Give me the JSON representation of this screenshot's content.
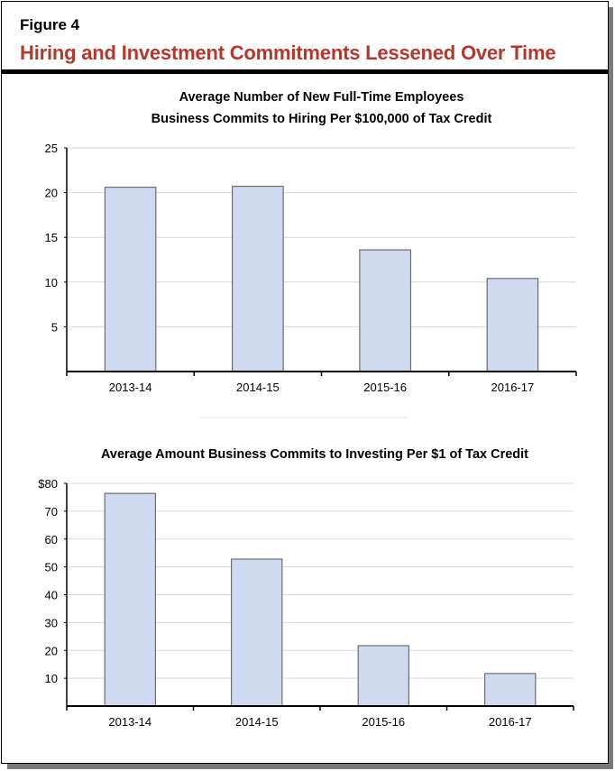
{
  "figure_label": "Figure 4",
  "figure_title": "Hiring and Investment Commitments Lessened Over Time",
  "chart_data": [
    {
      "type": "bar",
      "title": [
        "Average Number of New Full-Time Employees",
        "Business Commits to Hiring Per $100,000 of Tax Credit"
      ],
      "categories": [
        "2013-14",
        "2014-15",
        "2015-16",
        "2016-17"
      ],
      "values": [
        20.6,
        20.7,
        13.6,
        10.4
      ],
      "yticks": [
        5,
        10,
        15,
        20,
        25
      ],
      "ytick_labels": [
        "5",
        "10",
        "15",
        "20",
        "25"
      ],
      "ylim": [
        0,
        25
      ],
      "grid": true,
      "bar_color": "#cfd9f0"
    },
    {
      "type": "bar",
      "title": [
        "Average Amount Business Commits to Investing Per $1 of Tax Credit"
      ],
      "categories": [
        "2013-14",
        "2014-15",
        "2015-16",
        "2016-17"
      ],
      "values": [
        76.4,
        52.8,
        21.7,
        11.7
      ],
      "yticks": [
        10,
        20,
        30,
        40,
        50,
        60,
        70,
        80
      ],
      "ytick_labels": [
        "10",
        "20",
        "30",
        "40",
        "50",
        "60",
        "70",
        "$80"
      ],
      "ylim": [
        0,
        80
      ],
      "grid": true,
      "bar_color": "#cfd9f0"
    }
  ]
}
